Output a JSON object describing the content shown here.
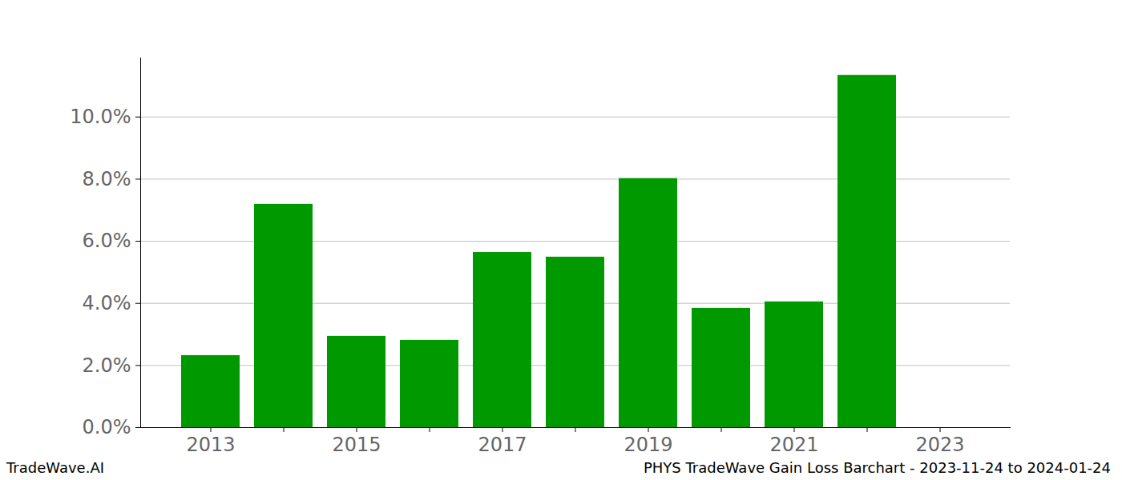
{
  "chart_data": {
    "type": "bar",
    "title": "PHYS TradeWave Gain Loss Barchart - 2023-11-24 to 2024-01-24",
    "source": "TradeWave.AI",
    "categories": [
      "2013",
      null,
      "2015",
      null,
      "2017",
      null,
      "2019",
      null,
      "2021",
      null,
      "2023"
    ],
    "values": [
      2.32,
      7.19,
      2.94,
      2.81,
      5.64,
      5.49,
      8.02,
      3.84,
      4.05,
      11.34,
      null
    ],
    "color": "#009900",
    "ylim": [
      0,
      11.9
    ],
    "yticks": [
      {
        "value": 0,
        "label": "0.0%"
      },
      {
        "value": 2,
        "label": "2.0%"
      },
      {
        "value": 4,
        "label": "4.0%"
      },
      {
        "value": 6,
        "label": "6.0%"
      },
      {
        "value": 8,
        "label": "8.0%"
      },
      {
        "value": 10,
        "label": "10.0%"
      }
    ],
    "grid": true
  }
}
